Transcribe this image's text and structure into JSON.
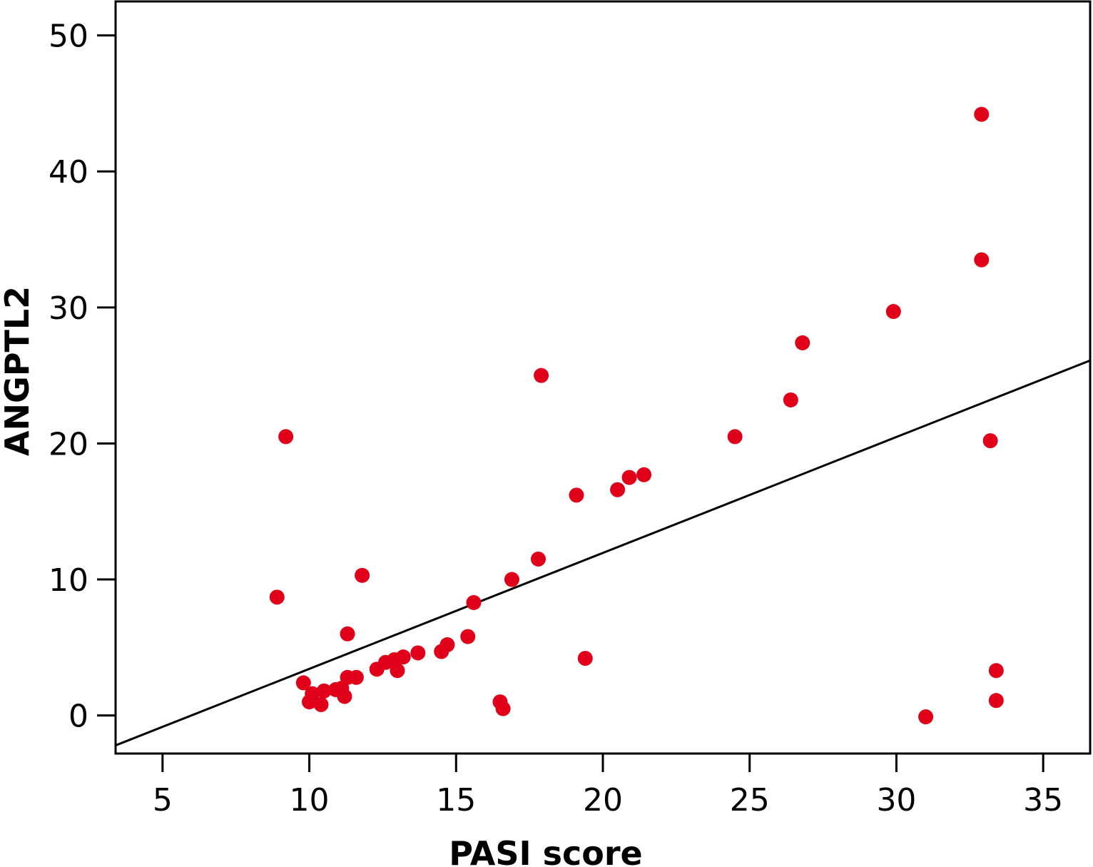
{
  "chart_data": {
    "type": "scatter",
    "xlabel": "PASI score",
    "ylabel": "ANGPTL2",
    "xlim": [
      3.4,
      36.6
    ],
    "ylim": [
      -2.8,
      52.5
    ],
    "xticks": [
      5,
      10,
      15,
      20,
      25,
      30,
      35
    ],
    "yticks": [
      0,
      10,
      20,
      30,
      40,
      50
    ],
    "grid": false,
    "legend": "none",
    "point_color": "#e0001a",
    "line_color": "#000000",
    "points": [
      {
        "x": 8.9,
        "y": 8.7
      },
      {
        "x": 9.2,
        "y": 20.5
      },
      {
        "x": 9.8,
        "y": 2.4
      },
      {
        "x": 10.0,
        "y": 1.0
      },
      {
        "x": 10.1,
        "y": 1.6
      },
      {
        "x": 10.4,
        "y": 0.8
      },
      {
        "x": 10.5,
        "y": 1.8
      },
      {
        "x": 10.9,
        "y": 1.9
      },
      {
        "x": 11.1,
        "y": 2.0
      },
      {
        "x": 11.2,
        "y": 1.4
      },
      {
        "x": 11.3,
        "y": 2.8
      },
      {
        "x": 11.3,
        "y": 6.0
      },
      {
        "x": 11.6,
        "y": 2.8
      },
      {
        "x": 11.8,
        "y": 10.3
      },
      {
        "x": 12.3,
        "y": 3.4
      },
      {
        "x": 12.6,
        "y": 3.9
      },
      {
        "x": 12.9,
        "y": 4.1
      },
      {
        "x": 13.0,
        "y": 3.3
      },
      {
        "x": 13.2,
        "y": 4.3
      },
      {
        "x": 13.7,
        "y": 4.6
      },
      {
        "x": 14.5,
        "y": 4.7
      },
      {
        "x": 14.7,
        "y": 5.2
      },
      {
        "x": 15.4,
        "y": 5.8
      },
      {
        "x": 15.6,
        "y": 8.3
      },
      {
        "x": 16.5,
        "y": 1.0
      },
      {
        "x": 16.6,
        "y": 0.5
      },
      {
        "x": 16.9,
        "y": 10.0
      },
      {
        "x": 17.8,
        "y": 11.5
      },
      {
        "x": 17.9,
        "y": 25.0
      },
      {
        "x": 19.1,
        "y": 16.2
      },
      {
        "x": 19.4,
        "y": 4.2
      },
      {
        "x": 20.5,
        "y": 16.6
      },
      {
        "x": 20.9,
        "y": 17.5
      },
      {
        "x": 21.4,
        "y": 17.7
      },
      {
        "x": 24.5,
        "y": 20.5
      },
      {
        "x": 26.4,
        "y": 23.2
      },
      {
        "x": 26.8,
        "y": 27.4
      },
      {
        "x": 29.9,
        "y": 29.7
      },
      {
        "x": 31.0,
        "y": -0.1
      },
      {
        "x": 32.9,
        "y": 33.5
      },
      {
        "x": 32.9,
        "y": 44.2
      },
      {
        "x": 33.2,
        "y": 20.2
      },
      {
        "x": 33.4,
        "y": 3.3
      },
      {
        "x": 33.4,
        "y": 1.1
      }
    ],
    "regression_line": {
      "x": [
        3.4,
        36.6
      ],
      "y": [
        -2.2,
        26.1
      ]
    }
  }
}
